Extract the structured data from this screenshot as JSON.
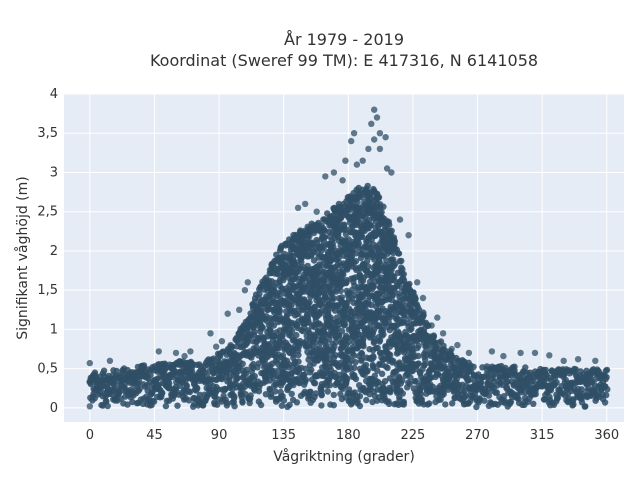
{
  "chart_data": {
    "type": "scatter",
    "title_line1": "År 1979 - 2019",
    "title_line2": "Koordinat (Sweref 99 TM): E 417316, N 6141058",
    "xlabel": "Vågriktning (grader)",
    "ylabel": "Signifikant våghöjd (m)",
    "xlim": [
      -18,
      372
    ],
    "ylim": [
      -0.18,
      4.0
    ],
    "x_ticks": [
      0,
      45,
      90,
      135,
      180,
      225,
      270,
      315,
      360
    ],
    "x_tick_labels": [
      "0",
      "45",
      "90",
      "135",
      "180",
      "225",
      "270",
      "315",
      "360"
    ],
    "y_ticks": [
      0,
      0.5,
      1,
      1.5,
      2,
      2.5,
      3,
      3.5,
      4
    ],
    "y_tick_labels": [
      "0",
      "0,5",
      "1",
      "1,5",
      "2",
      "2,5",
      "3",
      "3,5",
      "4"
    ],
    "grid": true,
    "background_color": "#e5ecf6",
    "marker_color": "#2f4f66",
    "envelope": {
      "x": [
        0,
        20,
        40,
        60,
        80,
        90,
        100,
        110,
        120,
        130,
        140,
        150,
        160,
        170,
        180,
        190,
        200,
        210,
        220,
        230,
        240,
        250,
        260,
        270,
        290,
        310,
        330,
        360
      ],
      "y_max": [
        0.45,
        0.5,
        0.55,
        0.6,
        0.6,
        0.7,
        0.85,
        1.2,
        1.6,
        2.0,
        2.2,
        2.3,
        2.4,
        2.55,
        2.7,
        2.85,
        2.8,
        2.3,
        1.7,
        1.3,
        0.95,
        0.75,
        0.6,
        0.55,
        0.55,
        0.5,
        0.5,
        0.5
      ]
    },
    "outliers": [
      {
        "x": 198,
        "y": 3.8
      },
      {
        "x": 200,
        "y": 3.7
      },
      {
        "x": 196,
        "y": 3.62
      },
      {
        "x": 202,
        "y": 3.5
      },
      {
        "x": 184,
        "y": 3.5
      },
      {
        "x": 198,
        "y": 3.42
      },
      {
        "x": 206,
        "y": 3.45
      },
      {
        "x": 202,
        "y": 3.3
      },
      {
        "x": 194,
        "y": 3.3
      },
      {
        "x": 182,
        "y": 3.4
      },
      {
        "x": 207,
        "y": 3.05
      },
      {
        "x": 190,
        "y": 3.15
      },
      {
        "x": 178,
        "y": 3.15
      },
      {
        "x": 170,
        "y": 3.0
      },
      {
        "x": 186,
        "y": 3.1
      },
      {
        "x": 210,
        "y": 3.0
      },
      {
        "x": 164,
        "y": 2.95
      },
      {
        "x": 176,
        "y": 2.9
      },
      {
        "x": 158,
        "y": 2.5
      },
      {
        "x": 150,
        "y": 2.6
      },
      {
        "x": 145,
        "y": 2.55
      },
      {
        "x": 216,
        "y": 2.4
      },
      {
        "x": 222,
        "y": 2.2
      },
      {
        "x": 228,
        "y": 1.6
      },
      {
        "x": 232,
        "y": 1.4
      },
      {
        "x": 238,
        "y": 1.05
      },
      {
        "x": 246,
        "y": 0.95
      },
      {
        "x": 252,
        "y": 0.75
      },
      {
        "x": 96,
        "y": 1.2
      },
      {
        "x": 104,
        "y": 1.25
      },
      {
        "x": 108,
        "y": 1.5
      },
      {
        "x": 110,
        "y": 1.6
      },
      {
        "x": 84,
        "y": 0.95
      },
      {
        "x": 92,
        "y": 0.85
      },
      {
        "x": 88,
        "y": 0.78
      },
      {
        "x": 70,
        "y": 0.72
      },
      {
        "x": 66,
        "y": 0.66
      },
      {
        "x": 48,
        "y": 0.72
      },
      {
        "x": 14,
        "y": 0.6
      },
      {
        "x": 0,
        "y": 0.57
      },
      {
        "x": 60,
        "y": 0.7
      },
      {
        "x": 98,
        "y": 0.8
      },
      {
        "x": 280,
        "y": 0.72
      },
      {
        "x": 288,
        "y": 0.66
      },
      {
        "x": 300,
        "y": 0.7
      },
      {
        "x": 310,
        "y": 0.7
      },
      {
        "x": 320,
        "y": 0.67
      },
      {
        "x": 330,
        "y": 0.6
      },
      {
        "x": 340,
        "y": 0.62
      },
      {
        "x": 352,
        "y": 0.6
      },
      {
        "x": 0,
        "y": 0.02
      },
      {
        "x": 264,
        "y": 0.7
      },
      {
        "x": 256,
        "y": 0.8
      },
      {
        "x": 242,
        "y": 1.15
      }
    ]
  }
}
